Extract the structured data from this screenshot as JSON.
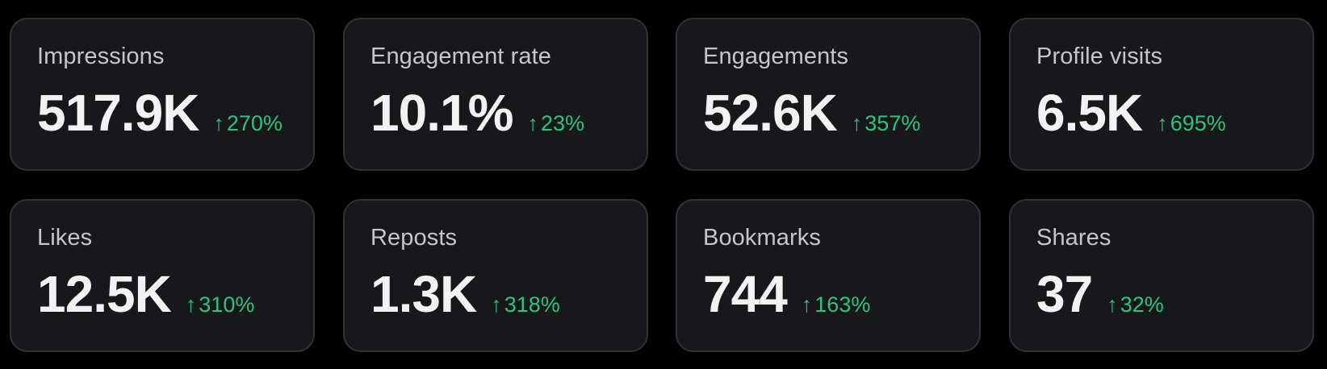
{
  "metrics": [
    {
      "label": "Impressions",
      "value": "517.9K",
      "change": "270%",
      "trend_icon": "arrow-up-icon",
      "trend_color": "#2fc27a"
    },
    {
      "label": "Engagement rate",
      "value": "10.1%",
      "change": "23%",
      "trend_icon": "arrow-up-icon",
      "trend_color": "#2fc27a"
    },
    {
      "label": "Engagements",
      "value": "52.6K",
      "change": "357%",
      "trend_icon": "arrow-up-icon",
      "trend_color": "#2fc27a"
    },
    {
      "label": "Profile visits",
      "value": "6.5K",
      "change": "695%",
      "trend_icon": "arrow-up-icon",
      "trend_color": "#2fc27a"
    },
    {
      "label": "Likes",
      "value": "12.5K",
      "change": "310%",
      "trend_icon": "arrow-up-icon",
      "trend_color": "#2fc27a"
    },
    {
      "label": "Reposts",
      "value": "1.3K",
      "change": "318%",
      "trend_icon": "arrow-up-icon",
      "trend_color": "#2fc27a"
    },
    {
      "label": "Bookmarks",
      "value": "744",
      "change": "163%",
      "trend_icon": "arrow-up-icon",
      "trend_color": "#2fc27a"
    },
    {
      "label": "Shares",
      "value": "37",
      "change": "32%",
      "trend_icon": "arrow-up-icon",
      "trend_color": "#2fc27a"
    }
  ],
  "theme": {
    "background": "#000000",
    "card_background": "#17181c",
    "card_border": "#2f3136",
    "label_color": "#c4c6ca",
    "value_color": "#f2f2f3",
    "positive_color": "#2fc27a"
  },
  "icons": {
    "trend_up": "↑"
  }
}
